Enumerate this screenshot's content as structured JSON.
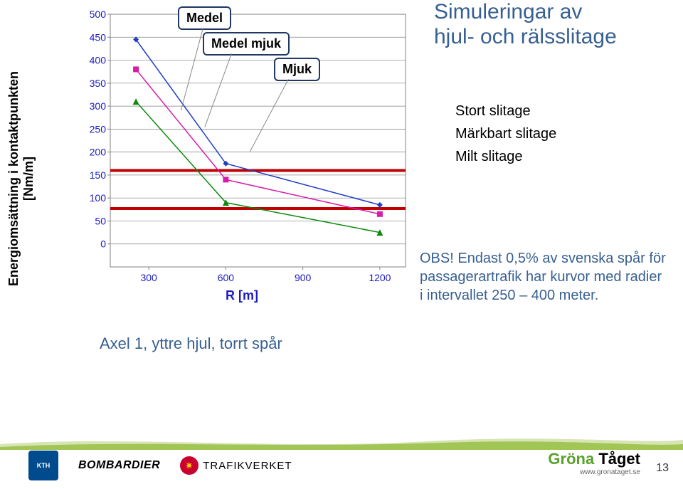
{
  "title_line1": "Simuleringar av",
  "title_line2": "hjul- och rälsslitage",
  "y_axis_label": "Energiomsättning i kontaktpunkten [Nm/m]",
  "x_axis_label": "R [m]",
  "caption": "Axel 1, yttre hjul, torrt spår",
  "slitage": {
    "stort": "Stort slitage",
    "markbart": "Märkbart slitage",
    "milt": "Milt slitage"
  },
  "obs": "OBS! Endast 0,5% av svenska spår för passagerartrafik har kurvor med radier i intervallet 250 – 400 meter.",
  "callouts": {
    "medel": "Medel",
    "medel_mjuk": "Medel mjuk",
    "mjuk": "Mjuk"
  },
  "chart": {
    "type": "line-scatter",
    "xlim": [
      150,
      1300
    ],
    "ylim": [
      -50,
      500
    ],
    "xticks": [
      300,
      600,
      900,
      1200
    ],
    "yticks": [
      0,
      50,
      100,
      150,
      200,
      250,
      300,
      350,
      400,
      450,
      500
    ],
    "background": "#ffffff",
    "grid_color": "#808080",
    "axis_color": "#808080",
    "tick_label_color": "#1a1ac0",
    "tick_fontsize": 14,
    "series": [
      {
        "name": "Medel",
        "color": "#1f3fc4",
        "marker": "diamond",
        "marker_size": 8,
        "line_width": 1.5,
        "x": [
          250,
          600,
          1200
        ],
        "y": [
          445,
          175,
          85
        ]
      },
      {
        "name": "Medel mjuk",
        "color": "#d81ba8",
        "marker": "square",
        "marker_size": 8,
        "line_width": 1.5,
        "x": [
          250,
          600,
          1200
        ],
        "y": [
          380,
          140,
          65
        ]
      },
      {
        "name": "Mjuk",
        "color": "#0b8a0b",
        "marker": "triangle",
        "marker_size": 9,
        "line_width": 1.5,
        "x": [
          250,
          600,
          1200
        ],
        "y": [
          310,
          90,
          25
        ]
      }
    ],
    "hlines": [
      {
        "y": 160,
        "color": "#c00000",
        "width": 4
      },
      {
        "y": 77,
        "color": "#c00000",
        "width": 4
      }
    ]
  },
  "logos": {
    "kth": "KTH",
    "bombardier": "BOMBARDIER",
    "trafikverket": "TRAFIKVERKET",
    "grona": "Gröna Tåget",
    "grona_url": "www.gronataget.se"
  },
  "page_number": "13",
  "colors": {
    "title": "#376092",
    "axis": "#1a1ac0",
    "wave1": "#d7e4b5",
    "wave2": "#9cc24a"
  }
}
